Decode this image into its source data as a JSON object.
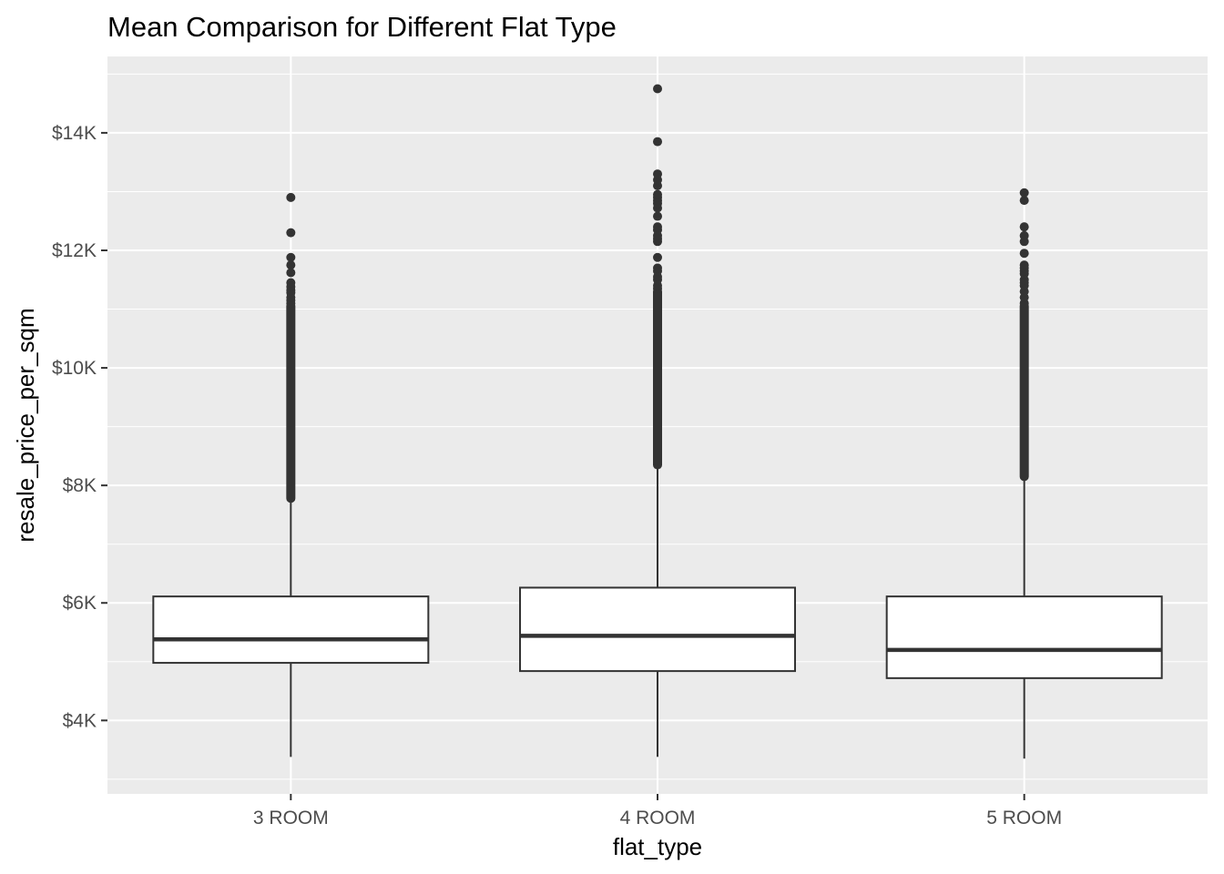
{
  "chart_data": {
    "type": "box",
    "title": "Mean Comparison for Different Flat Type",
    "xlabel": "flat_type",
    "ylabel": "resale_price_per_sqm",
    "ylim": [
      2750,
      15300
    ],
    "y_ticks": [
      4000,
      6000,
      8000,
      10000,
      12000,
      14000
    ],
    "y_tick_labels": [
      "$4K",
      "$6K",
      "$8K",
      "$10K",
      "$12K",
      "$14K"
    ],
    "grid": true,
    "colors": {
      "panel": "#ebebeb",
      "grid": "#ffffff",
      "box_fill": "#ffffff",
      "box_line": "#333333",
      "text": "#4d4d4d"
    },
    "categories": [
      "3 ROOM",
      "4 ROOM",
      "5 ROOM"
    ],
    "boxes": [
      {
        "category": "3 ROOM",
        "whisker_low": 3380,
        "q1": 4980,
        "median": 5380,
        "q3": 6110,
        "whisker_high": 7780,
        "outlier_band": [
          7780,
          11050
        ],
        "outliers": [
          11100,
          11150,
          11200,
          11280,
          11320,
          11380,
          11450,
          11620,
          11750,
          11880,
          12300,
          12900
        ]
      },
      {
        "category": "4 ROOM",
        "whisker_low": 3380,
        "q1": 4840,
        "median": 5440,
        "q3": 6260,
        "whisker_high": 8350,
        "outlier_band": [
          8350,
          11300
        ],
        "outliers": [
          11350,
          11400,
          11500,
          11550,
          11650,
          11700,
          11880,
          12150,
          12200,
          12250,
          12350,
          12400,
          12580,
          12720,
          12800,
          12850,
          12900,
          12950,
          13100,
          13200,
          13300,
          13850,
          14750
        ]
      },
      {
        "category": "5 ROOM",
        "whisker_low": 3350,
        "q1": 4720,
        "median": 5200,
        "q3": 6110,
        "whisker_high": 8150,
        "outlier_band": [
          8150,
          11050
        ],
        "outliers": [
          11100,
          11200,
          11300,
          11400,
          11450,
          11500,
          11600,
          11650,
          11700,
          11750,
          11950,
          12150,
          12250,
          12400,
          12850,
          12980
        ]
      }
    ]
  }
}
